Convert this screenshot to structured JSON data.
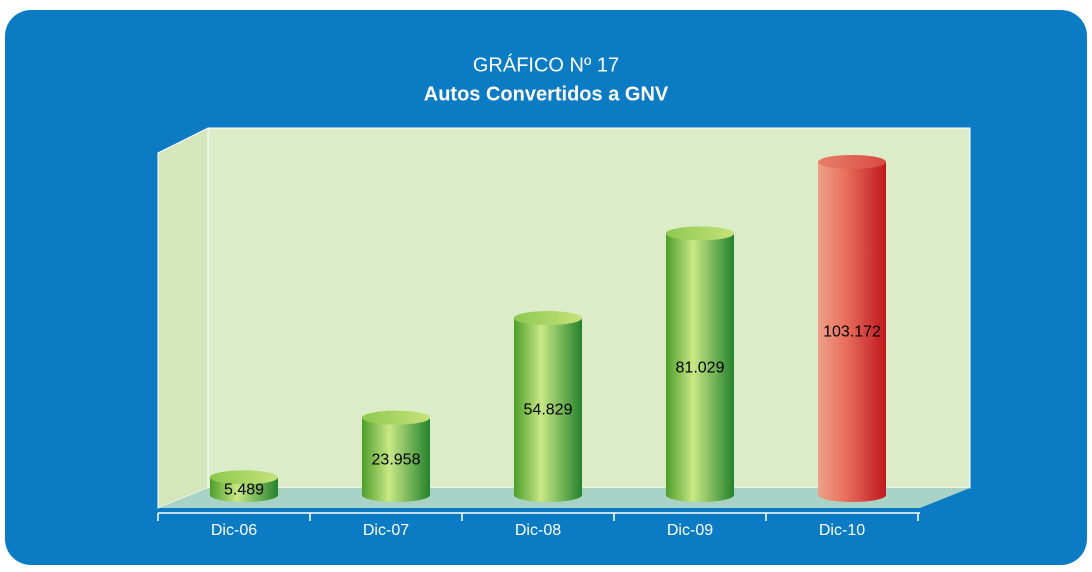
{
  "chart_data": {
    "type": "bar",
    "title": "GRÁFICO Nº 17",
    "subtitle": "Autos Convertidos a GNV",
    "categories": [
      "Dic-06",
      "Dic-07",
      "Dic-08",
      "Dic-09",
      "Dic-10"
    ],
    "values": [
      5489,
      23958,
      54829,
      81029,
      103172
    ],
    "value_labels": [
      "5.489",
      "23.958",
      "54.829",
      "81.029",
      "103.172"
    ],
    "colors": [
      "green",
      "green",
      "green",
      "green",
      "red"
    ]
  }
}
